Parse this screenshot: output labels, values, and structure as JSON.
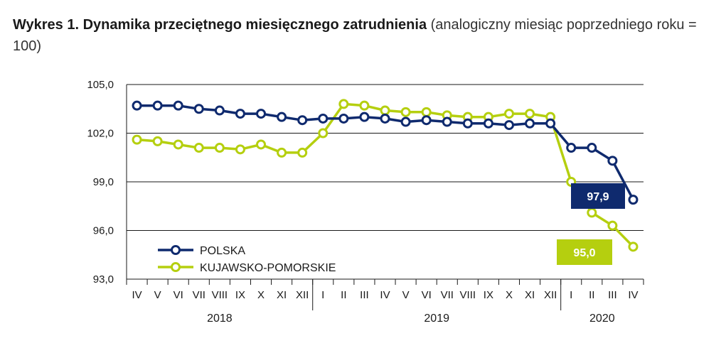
{
  "title": {
    "bold": "Wykres 1. Dynamika przeciętnego miesięcznego zatrudnienia",
    "normal": "(analogiczny miesiąc poprzedniego roku = 100)"
  },
  "chart_data": {
    "type": "line",
    "categories": [
      "IV",
      "V",
      "VI",
      "VII",
      "VIII",
      "IX",
      "X",
      "XI",
      "XII",
      "I",
      "II",
      "III",
      "IV",
      "V",
      "VI",
      "VII",
      "VIII",
      "IX",
      "X",
      "XI",
      "XII",
      "I",
      "II",
      "III",
      "IV"
    ],
    "years": [
      {
        "label": "2018",
        "from": 0,
        "to": 8
      },
      {
        "label": "2019",
        "from": 9,
        "to": 20
      },
      {
        "label": "2020",
        "from": 21,
        "to": 24
      }
    ],
    "ylim": [
      93.0,
      105.0
    ],
    "yticks": [
      "93,0",
      "96,0",
      "99,0",
      "102,0",
      "105,0"
    ],
    "ytick_values": [
      93,
      96,
      99,
      102,
      105
    ],
    "grid": true,
    "legend_position": "bottom-left",
    "series": [
      {
        "name": "POLSKA",
        "color": "#0f2a6e",
        "values": [
          103.7,
          103.7,
          103.7,
          103.5,
          103.4,
          103.2,
          103.2,
          103.0,
          102.8,
          102.9,
          102.9,
          103.0,
          102.9,
          102.7,
          102.8,
          102.7,
          102.6,
          102.6,
          102.5,
          102.6,
          102.6,
          101.1,
          101.1,
          100.3,
          97.9
        ],
        "callout": "97,9"
      },
      {
        "name": "KUJAWSKO-POMORSKIE",
        "color": "#b5cf0f",
        "values": [
          101.6,
          101.5,
          101.3,
          101.1,
          101.1,
          101.0,
          101.3,
          100.8,
          100.8,
          102.0,
          103.8,
          103.7,
          103.4,
          103.3,
          103.3,
          103.1,
          103.0,
          103.0,
          103.2,
          103.2,
          103.0,
          99.0,
          97.1,
          96.3,
          95.0
        ],
        "callout": "95,0"
      }
    ]
  }
}
